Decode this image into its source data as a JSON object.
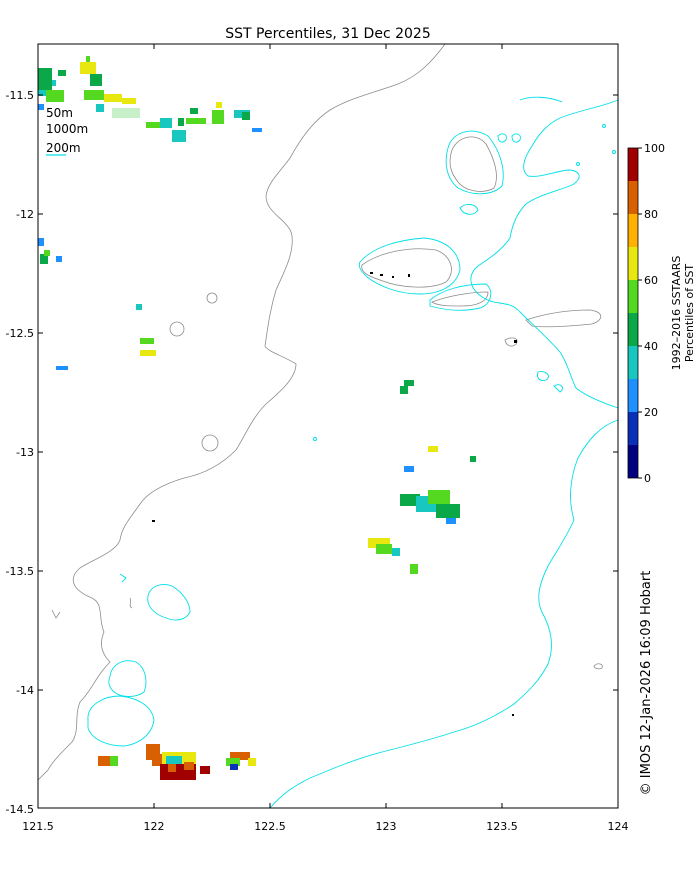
{
  "title": "SST Percentiles, 31 Dec 2025",
  "x_ticks": [
    "121.5",
    "122",
    "122.5",
    "123",
    "123.5",
    "124"
  ],
  "y_ticks": [
    "-11.5",
    "-12",
    "-12.5",
    "-13",
    "-13.5",
    "-14",
    "-14.5"
  ],
  "legend": [
    "50m",
    "1000m",
    "200m"
  ],
  "colorbar": {
    "ticks": [
      "0",
      "20",
      "40",
      "60",
      "80",
      "100"
    ],
    "title_line1": "1992–2016 SSTAARS",
    "title_line2": "Percentiles of SST",
    "colors": [
      "#000080",
      "#0a2fb8",
      "#1e90ff",
      "#18c8c0",
      "#0aa848",
      "#54d820",
      "#e8e810",
      "#ffb000",
      "#d86000",
      "#a00000"
    ]
  },
  "credit": "© IMOS 12-Jan-2026 16:09 Hobart",
  "colors": {
    "coast": "#8c8c8c",
    "isobath_200": "#00e0e8"
  },
  "chart_data": {
    "type": "heatmap",
    "title": "SST Percentiles, 31 Dec 2025",
    "xlim": [
      121.5,
      124
    ],
    "ylim": [
      -14.5,
      -11.3
    ],
    "colorbar_range": [
      0,
      100
    ],
    "colorbar_label": "1992–2016 SSTAARS Percentiles of SST"
  }
}
